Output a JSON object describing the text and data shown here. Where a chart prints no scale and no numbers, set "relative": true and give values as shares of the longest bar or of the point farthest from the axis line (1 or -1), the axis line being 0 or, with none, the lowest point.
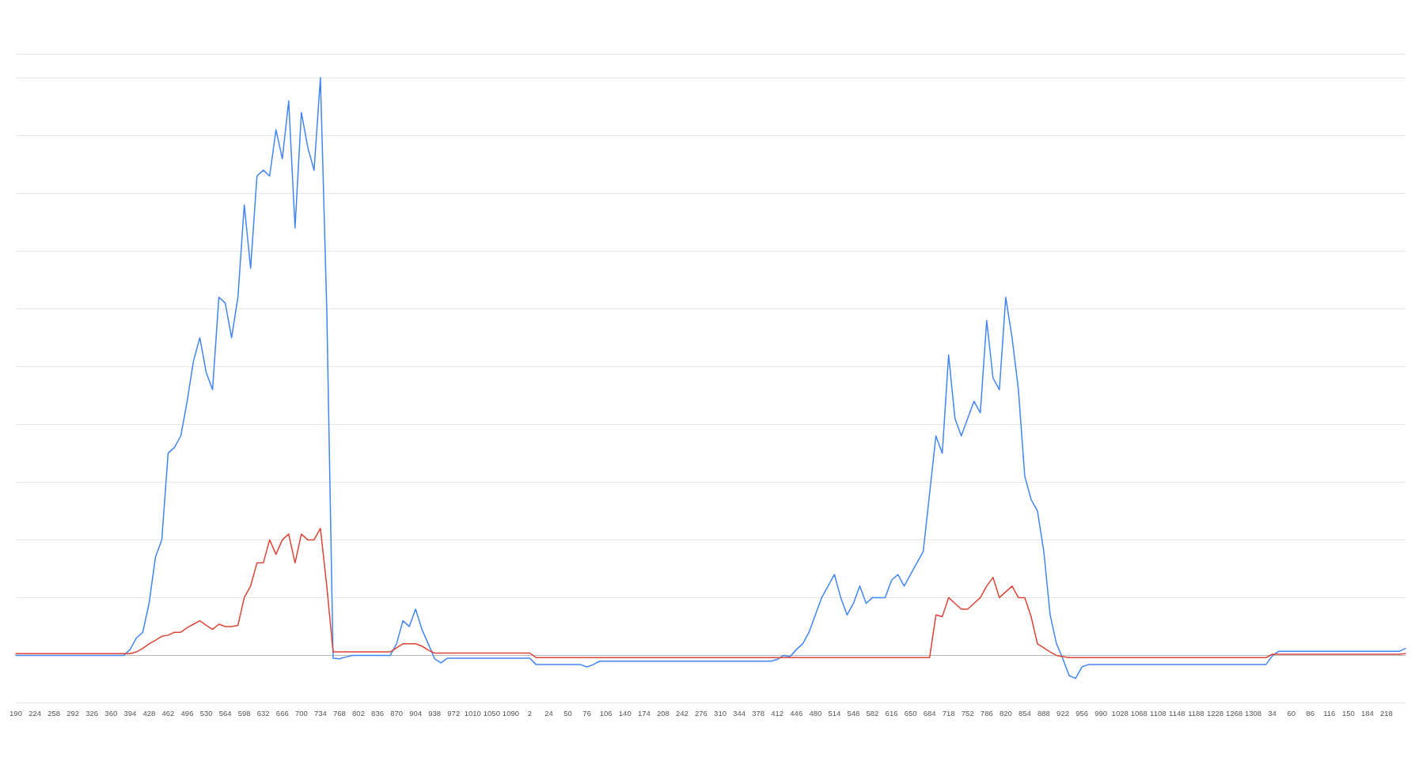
{
  "chart_data": {
    "type": "line",
    "relative": true,
    "grid": "y",
    "marker": "none",
    "line_style": "solid",
    "categories": [
      "190",
      null,
      null,
      "224",
      null,
      null,
      "258",
      null,
      null,
      "292",
      null,
      null,
      "326",
      null,
      null,
      "360",
      null,
      null,
      "394",
      null,
      null,
      "428",
      null,
      null,
      "462",
      null,
      null,
      "496",
      null,
      null,
      "530",
      null,
      null,
      "564",
      null,
      null,
      "598",
      null,
      null,
      "632",
      null,
      null,
      "666",
      null,
      null,
      "700",
      null,
      null,
      "734",
      null,
      null,
      "768",
      null,
      null,
      "802",
      null,
      null,
      "836",
      null,
      null,
      "870",
      null,
      null,
      "904",
      null,
      null,
      "938",
      null,
      null,
      "972",
      null,
      null,
      "1010",
      null,
      null,
      "1050",
      null,
      null,
      "1090",
      null,
      null,
      "2",
      null,
      null,
      "24",
      null,
      null,
      "50",
      null,
      null,
      "76",
      null,
      null,
      "106",
      null,
      null,
      "140",
      null,
      null,
      "174",
      null,
      null,
      "208",
      null,
      null,
      "242",
      null,
      null,
      "276",
      null,
      null,
      "310",
      null,
      null,
      "344",
      null,
      null,
      "378",
      null,
      null,
      "412",
      null,
      null,
      "446",
      null,
      null,
      "480",
      null,
      null,
      "514",
      null,
      null,
      "548",
      null,
      null,
      "582",
      null,
      null,
      "616",
      null,
      null,
      "650",
      null,
      null,
      "684",
      null,
      null,
      "718",
      null,
      null,
      "752",
      null,
      null,
      "786",
      null,
      null,
      "820",
      null,
      null,
      "854",
      null,
      null,
      "888",
      null,
      null,
      "922",
      null,
      null,
      "956",
      null,
      null,
      "990",
      null,
      null,
      "1028",
      null,
      null,
      "1068",
      null,
      null,
      "1108",
      null,
      null,
      "1148",
      null,
      null,
      "1188",
      null,
      null,
      "1228",
      null,
      null,
      "1268",
      null,
      null,
      "1308",
      null,
      null,
      "34",
      null,
      null,
      "60",
      null,
      null,
      "86",
      null,
      null,
      "116",
      null,
      null,
      "150",
      null,
      null,
      "184",
      null,
      null,
      "218",
      null,
      null,
      null
    ],
    "series": [
      {
        "color": "#4285f4",
        "values": [
          0,
          0,
          0,
          0,
          0,
          0,
          0,
          0,
          0,
          0,
          0,
          0,
          0,
          0,
          0,
          0,
          0,
          0,
          0.01,
          0.03,
          0.04,
          0.09,
          0.17,
          0.2,
          0.35,
          0.36,
          0.38,
          0.44,
          0.51,
          0.55,
          0.49,
          0.46,
          0.62,
          0.61,
          0.55,
          0.62,
          0.78,
          0.67,
          0.83,
          0.84,
          0.83,
          0.91,
          0.86,
          0.96,
          0.74,
          0.94,
          0.88,
          0.84,
          1.0,
          0.6,
          -0.005,
          -0.006,
          -0.003,
          0,
          0,
          0,
          0,
          0,
          0,
          0,
          0.02,
          0.06,
          0.05,
          0.08,
          0.045,
          0.02,
          -0.006,
          -0.013,
          -0.005,
          -0.005,
          -0.005,
          -0.005,
          -0.005,
          -0.005,
          -0.005,
          -0.005,
          -0.005,
          -0.005,
          -0.005,
          -0.005,
          -0.005,
          -0.005,
          -0.016,
          -0.016,
          -0.016,
          -0.016,
          -0.016,
          -0.016,
          -0.016,
          -0.016,
          -0.02,
          -0.016,
          -0.01,
          -0.01,
          -0.01,
          -0.01,
          -0.01,
          -0.01,
          -0.01,
          -0.01,
          -0.01,
          -0.01,
          -0.01,
          -0.01,
          -0.01,
          -0.01,
          -0.01,
          -0.01,
          -0.01,
          -0.01,
          -0.01,
          -0.01,
          -0.01,
          -0.01,
          -0.01,
          -0.01,
          -0.01,
          -0.01,
          -0.01,
          -0.01,
          -0.007,
          0,
          -0.002,
          0.01,
          0.02,
          0.04,
          0.07,
          0.1,
          0.12,
          0.14,
          0.1,
          0.07,
          0.09,
          0.12,
          0.09,
          0.1,
          0.1,
          0.1,
          0.13,
          0.14,
          0.12,
          0.14,
          0.16,
          0.18,
          0.28,
          0.38,
          0.35,
          0.52,
          0.41,
          0.38,
          0.41,
          0.44,
          0.42,
          0.58,
          0.48,
          0.46,
          0.62,
          0.55,
          0.46,
          0.31,
          0.27,
          0.25,
          0.18,
          0.07,
          0.02,
          -0.006,
          -0.035,
          -0.04,
          -0.02,
          -0.016,
          -0.016,
          -0.016,
          -0.016,
          -0.016,
          -0.016,
          -0.016,
          -0.016,
          -0.016,
          -0.016,
          -0.016,
          -0.016,
          -0.016,
          -0.016,
          -0.016,
          -0.016,
          -0.016,
          -0.016,
          -0.016,
          -0.016,
          -0.016,
          -0.016,
          -0.016,
          -0.016,
          -0.016,
          -0.016,
          -0.016,
          -0.016,
          -0.016,
          -0.001,
          0.007,
          0.007,
          0.007,
          0.007,
          0.007,
          0.007,
          0.007,
          0.007,
          0.007,
          0.007,
          0.007,
          0.007,
          0.007,
          0.007,
          0.007,
          0.007,
          0.007,
          0.007,
          0.007,
          0.007,
          0.012
        ]
      },
      {
        "color": "#db4437",
        "values": [
          0.003,
          0.003,
          0.003,
          0.003,
          0.003,
          0.003,
          0.003,
          0.003,
          0.003,
          0.003,
          0.003,
          0.003,
          0.003,
          0.003,
          0.003,
          0.003,
          0.003,
          0.003,
          0.003,
          0.006,
          0.012,
          0.02,
          0.026,
          0.033,
          0.035,
          0.04,
          0.04,
          0.048,
          0.054,
          0.06,
          0.052,
          0.045,
          0.054,
          0.05,
          0.05,
          0.052,
          0.1,
          0.12,
          0.16,
          0.16,
          0.2,
          0.175,
          0.2,
          0.21,
          0.16,
          0.21,
          0.2,
          0.2,
          0.22,
          0.12,
          0.006,
          0.006,
          0.006,
          0.006,
          0.006,
          0.006,
          0.006,
          0.006,
          0.006,
          0.006,
          0.013,
          0.02,
          0.02,
          0.02,
          0.016,
          0.009,
          0.004,
          0.004,
          0.004,
          0.004,
          0.004,
          0.004,
          0.004,
          0.004,
          0.004,
          0.004,
          0.004,
          0.004,
          0.004,
          0.004,
          0.004,
          0.004,
          -0.004,
          -0.004,
          -0.004,
          -0.004,
          -0.004,
          -0.004,
          -0.004,
          -0.004,
          -0.004,
          -0.004,
          -0.004,
          -0.004,
          -0.004,
          -0.004,
          -0.004,
          -0.004,
          -0.004,
          -0.004,
          -0.004,
          -0.004,
          -0.004,
          -0.004,
          -0.004,
          -0.004,
          -0.004,
          -0.004,
          -0.004,
          -0.004,
          -0.004,
          -0.004,
          -0.004,
          -0.004,
          -0.004,
          -0.004,
          -0.004,
          -0.004,
          -0.004,
          -0.004,
          -0.004,
          -0.004,
          -0.004,
          -0.004,
          -0.004,
          -0.004,
          -0.004,
          -0.004,
          -0.004,
          -0.004,
          -0.004,
          -0.004,
          -0.004,
          -0.004,
          -0.004,
          -0.004,
          -0.004,
          -0.004,
          -0.004,
          -0.004,
          -0.004,
          -0.004,
          -0.004,
          -0.004,
          -0.004,
          0.07,
          0.067,
          0.1,
          0.09,
          0.08,
          0.08,
          0.09,
          0.1,
          0.12,
          0.135,
          0.1,
          0.11,
          0.12,
          0.1,
          0.1,
          0.067,
          0.02,
          0.013,
          0.006,
          0,
          -0.002,
          -0.004,
          -0.004,
          -0.004,
          -0.004,
          -0.004,
          -0.004,
          -0.004,
          -0.004,
          -0.004,
          -0.004,
          -0.004,
          -0.004,
          -0.004,
          -0.004,
          -0.004,
          -0.004,
          -0.004,
          -0.004,
          -0.004,
          -0.004,
          -0.004,
          -0.004,
          -0.004,
          -0.004,
          -0.004,
          -0.004,
          -0.004,
          -0.004,
          -0.004,
          -0.004,
          -0.004,
          -0.004,
          0.002,
          0.002,
          0.002,
          0.002,
          0.002,
          0.002,
          0.002,
          0.002,
          0.002,
          0.002,
          0.002,
          0.002,
          0.002,
          0.002,
          0.002,
          0.002,
          0.002,
          0.002,
          0.002,
          0.002,
          0.002,
          0.003
        ]
      }
    ]
  }
}
